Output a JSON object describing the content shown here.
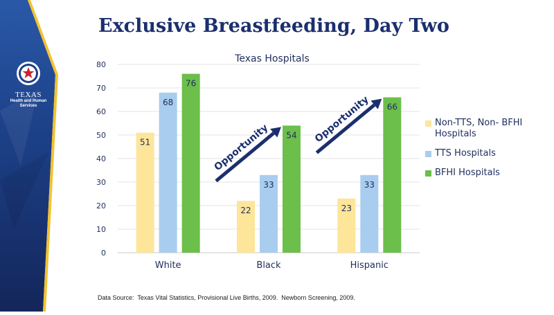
{
  "slide": {
    "title": "Exclusive Breastfeeding, Day Two",
    "source": "Data Source:  Texas Vital Statistics, Provisional Live Births, 2009.  Newborn Screening, 2009.",
    "logo": {
      "state": "TEXAS",
      "dept_line1": "Health and Human",
      "dept_line2": "Services"
    },
    "annotation_text": "Opportunity",
    "colors": {
      "navy": "#1b2f6e",
      "panel_blue": "#1c3f86",
      "gold": "#f2c230"
    }
  },
  "chart_data": {
    "type": "bar",
    "title": "Texas Hospitals",
    "categories": [
      "White",
      "Black",
      "Hispanic"
    ],
    "series": [
      {
        "name": "Non-TTS, Non- BFHI Hospitals",
        "values": [
          51,
          22,
          23
        ],
        "color": "#fde59a"
      },
      {
        "name": "TTS Hospitals",
        "values": [
          68,
          33,
          33
        ],
        "color": "#a9cdee"
      },
      {
        "name": "BFHI Hospitals",
        "values": [
          76,
          54,
          66
        ],
        "color": "#6bbf4a"
      }
    ],
    "ylim": [
      0,
      80
    ],
    "yticks": [
      0,
      10,
      20,
      30,
      40,
      50,
      60,
      70,
      80
    ],
    "grid": true,
    "legend_position": "right",
    "annotations": [
      {
        "text": "Opportunity",
        "category": "Black"
      },
      {
        "text": "Opportunity",
        "category": "Hispanic"
      }
    ]
  }
}
